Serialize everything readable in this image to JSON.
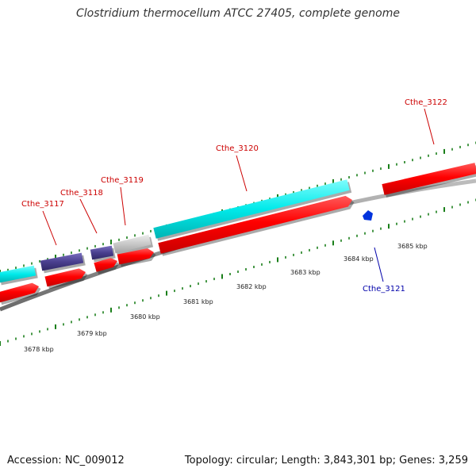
{
  "title": "Clostridium thermocellum ATCC 27405, complete genome",
  "footer": {
    "accession": "Accession: NC_009012",
    "summary": "Topology: circular; Length: 3,843,301 bp; Genes: 3,259"
  },
  "colors": {
    "reverse_gene": "#ff0000",
    "forward_cds_cyan": "#00e5e5",
    "forward_cds_purple": "#4a3f8f",
    "forward_cds_gray": "#c8c8c8",
    "minus_small_feature": "#0033dd",
    "backbone": "#888888",
    "tick": "#1a7f1a",
    "label_red": "#cc0000",
    "label_blue": "#0000aa"
  },
  "kbp_labels": [
    "3678 kbp",
    "3679 kbp",
    "3680 kbp",
    "3681 kbp",
    "3682 kbp",
    "3683 kbp",
    "3684 kbp",
    "3685 kbp"
  ],
  "gene_labels": [
    {
      "text": "Cthe_3117",
      "color": "red"
    },
    {
      "text": "Cthe_3118",
      "color": "red"
    },
    {
      "text": "Cthe_3119",
      "color": "red"
    },
    {
      "text": "Cthe_3120",
      "color": "red"
    },
    {
      "text": "Cthe_3121",
      "color": "blue"
    },
    {
      "text": "Cthe_3122",
      "color": "red"
    }
  ]
}
